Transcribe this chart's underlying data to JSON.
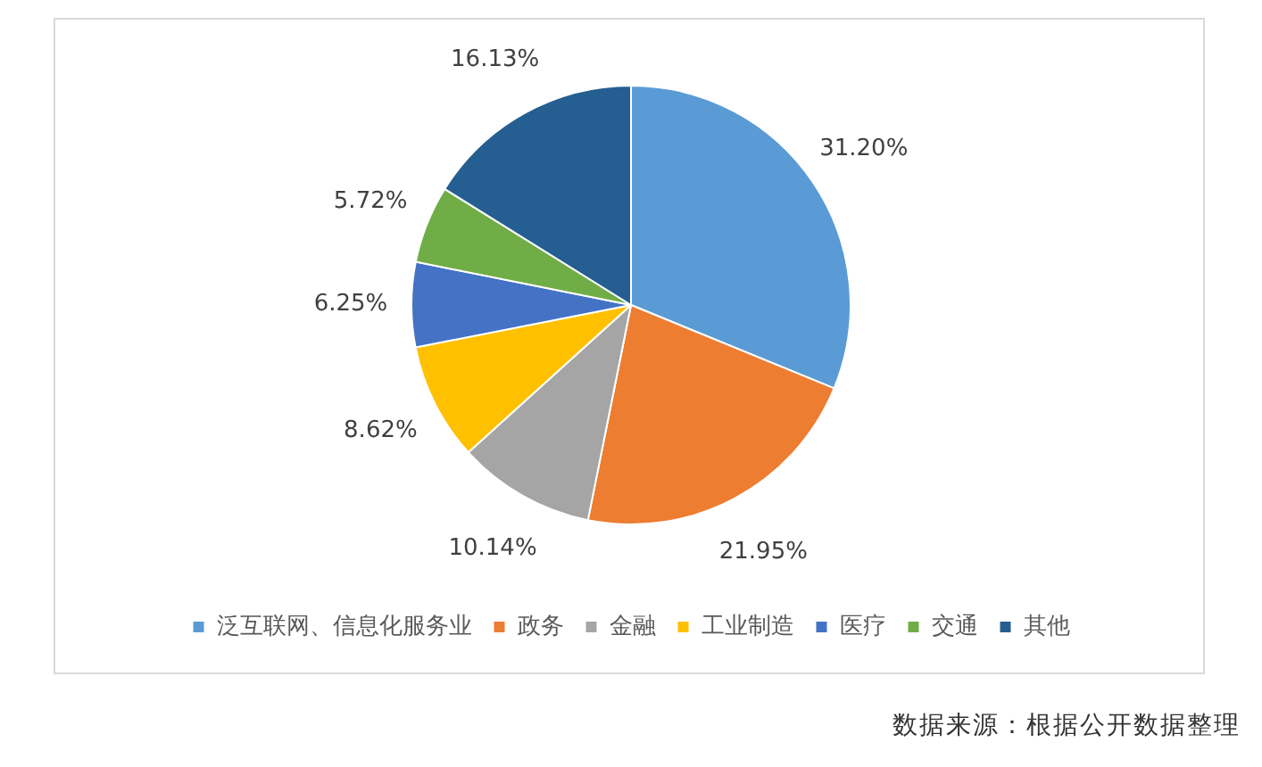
{
  "chart_data": {
    "type": "pie",
    "categories": [
      "泛互联网、信息化服务业",
      "政务",
      "金融",
      "工业制造",
      "医疗",
      "交通",
      "其他"
    ],
    "values": [
      31.2,
      21.95,
      10.14,
      8.62,
      6.25,
      5.72,
      16.13
    ],
    "colors": [
      "#5b9bd5",
      "#ed7d31",
      "#a5a5a5",
      "#ffc000",
      "#4472c4",
      "#70ad47",
      "#255e91"
    ],
    "value_labels": [
      "31.20%",
      "21.95%",
      "10.14%",
      "8.62%",
      "6.25%",
      "5.72%",
      "16.13%"
    ],
    "legend": "bottom",
    "annotations": [
      "数据来源：根据公开数据整理"
    ]
  }
}
